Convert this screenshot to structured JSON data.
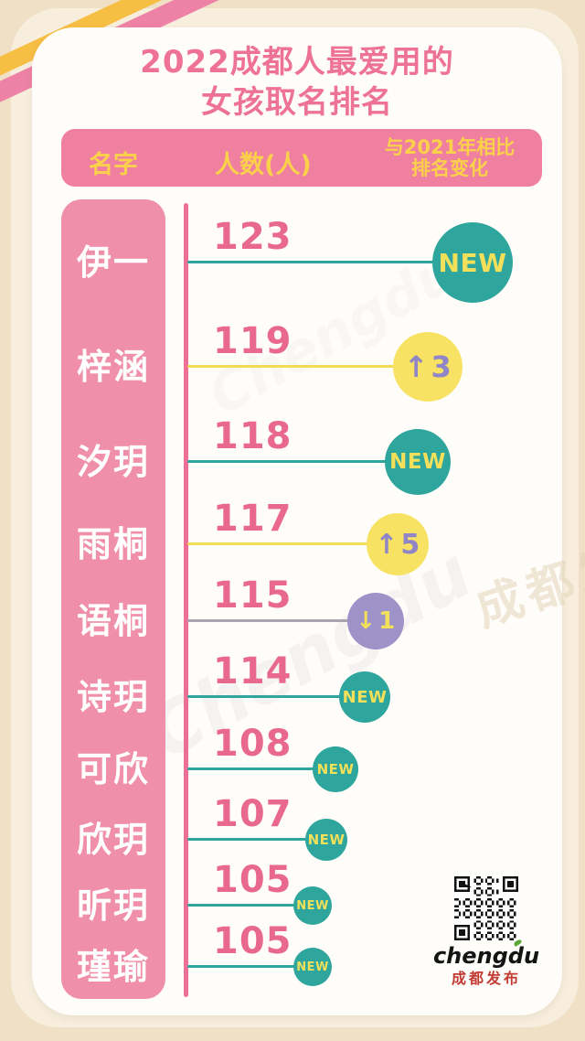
{
  "title": {
    "line1": "2022成都人最爱用的",
    "line2": "女孩取名排名"
  },
  "header": {
    "name_col": "名字",
    "count_col": "人数(人)",
    "change_col_line1": "与2021年相比",
    "change_col_line2": "排名变化"
  },
  "rows": [
    {
      "name": "伊一",
      "count": "123",
      "change_type": "new",
      "change_label": "NEW"
    },
    {
      "name": "梓涵",
      "count": "119",
      "change_type": "up",
      "change_label": "3"
    },
    {
      "name": "汐玥",
      "count": "118",
      "change_type": "new",
      "change_label": "NEW"
    },
    {
      "name": "雨桐",
      "count": "117",
      "change_type": "up",
      "change_label": "5"
    },
    {
      "name": "语桐",
      "count": "115",
      "change_type": "down",
      "change_label": "1"
    },
    {
      "name": "诗玥",
      "count": "114",
      "change_type": "new",
      "change_label": "NEW"
    },
    {
      "name": "可欣",
      "count": "108",
      "change_type": "new",
      "change_label": "NEW"
    },
    {
      "name": "欣玥",
      "count": "107",
      "change_type": "new",
      "change_label": "NEW"
    },
    {
      "name": "昕玥",
      "count": "105",
      "change_type": "new",
      "change_label": "NEW"
    },
    {
      "name": "瑾瑜",
      "count": "105",
      "change_type": "new",
      "change_label": "NEW"
    }
  ],
  "footer": {
    "logo_en": "chengdu",
    "logo_cn": "成都发布"
  },
  "watermarks": {
    "script": "Chengdu",
    "seal": "成都发布"
  },
  "colors": {
    "background": "#efe0c6",
    "card": "#fffdf9",
    "pink_header": "#f0809f",
    "pink_column": "#f08fa9",
    "pink_text": "#ee7296",
    "yellow_text": "#fbd14b",
    "teal": "#2ea69d",
    "badge_yellow": "#f7e264",
    "badge_purple": "#9d93c8",
    "badge_text_yellow": "#f2df5a",
    "badge_text_purple": "#9085c6",
    "line_gray": "#a8a4af",
    "ribbon_yellow": "#f7be44",
    "ribbon_pink": "#ee82a6"
  },
  "chart_data": {
    "type": "bar",
    "orientation": "horizontal",
    "title": "2022成都人最爱用的女孩取名排名",
    "categories": [
      "伊一",
      "梓涵",
      "汐玥",
      "雨桐",
      "语桐",
      "诗玥",
      "可欣",
      "欣玥",
      "昕玥",
      "瑾瑜"
    ],
    "values": [
      123,
      119,
      118,
      117,
      115,
      114,
      108,
      107,
      105,
      105
    ],
    "series": [
      {
        "name": "人数(人)",
        "values": [
          123,
          119,
          118,
          117,
          115,
          114,
          108,
          107,
          105,
          105
        ]
      }
    ],
    "annotations": [
      "NEW",
      "↑3",
      "NEW",
      "↑5",
      "↓1",
      "NEW",
      "NEW",
      "NEW",
      "NEW",
      "NEW"
    ],
    "annotation_meaning": "与2021年相比排名变化",
    "xlabel": "人数(人)",
    "ylabel": "名字",
    "xlim": [
      0,
      130
    ],
    "grid": false,
    "legend": false
  }
}
